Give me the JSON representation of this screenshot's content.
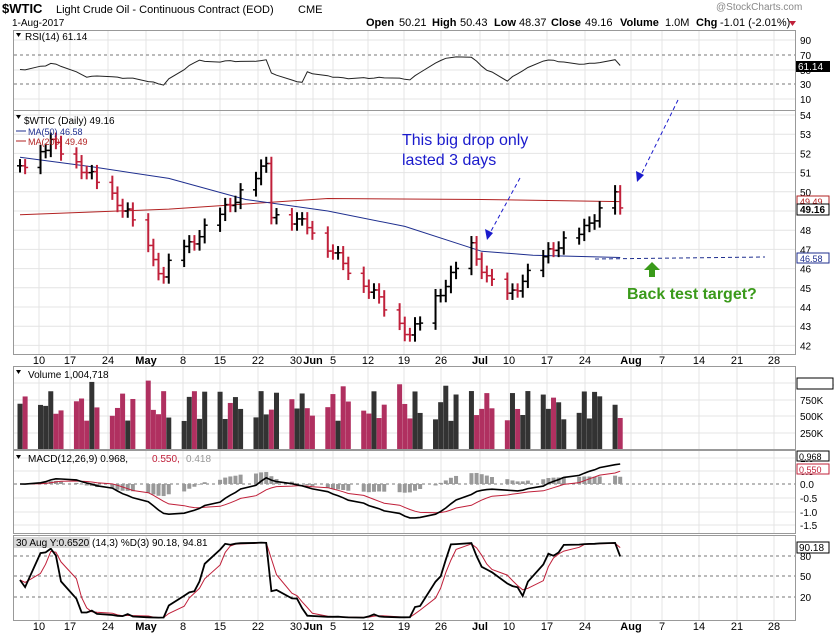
{
  "header": {
    "symbol": "$WTIC",
    "title": "Light Crude Oil - Continuous Contract (EOD)",
    "exchange": "CME",
    "date": "1-Aug-2017",
    "watermark": "@StockCharts.com",
    "open_label": "Open",
    "open": "50.21",
    "high_label": "High",
    "high": "50.43",
    "low_label": "Low",
    "low": "48.37",
    "close_label": "Close",
    "close": "49.16",
    "volume_label": "Volume",
    "volume": "1.0M",
    "chg_label": "Chg",
    "chg": "-1.01 (-2.01%)"
  },
  "panels": {
    "rsi": {
      "legend": "RSI(14) 61.14",
      "ticks": [
        "90",
        "70",
        "50",
        "30",
        "10"
      ],
      "value_tag": "61.14"
    },
    "price": {
      "legend_main": "$WTIC (Daily) 49.16",
      "legend_ma50": "MA(50) 46.58",
      "legend_ma200": "MA(200) 49.49",
      "ticks": [
        "54",
        "53",
        "52",
        "51",
        "50",
        "49",
        "48",
        "47",
        "46",
        "45",
        "44",
        "43",
        "42"
      ],
      "tag_ma200": "49.49",
      "tag_close": "49.16",
      "tag_ma50": "46.58"
    },
    "volume": {
      "legend": "Volume 1,004,718",
      "ticks": [
        "1004718",
        "750K",
        "500K",
        "250K"
      ]
    },
    "macd": {
      "legend_a": "MACD(12,26,9) 0.968,",
      "legend_b": "0.550,",
      "legend_c": "0.418",
      "ticks": [
        "1.0",
        "0.5",
        "0.0",
        "-0.5",
        "-1.0",
        "-1.5"
      ],
      "tag_macd": "0.968",
      "tag_signal": "0.550"
    },
    "stoch": {
      "legend": "30 Aug Y:0.6520 (14,3) %D(3) 90.18, 94.81",
      "ticks": [
        "80",
        "50",
        "20"
      ],
      "tag": "90.18"
    }
  },
  "date_axis": [
    "10",
    "17",
    "24",
    "May",
    "8",
    "15",
    "22",
    "30",
    "Jun",
    "5",
    "12",
    "19",
    "26",
    "Jul",
    "10",
    "17",
    "24",
    "Aug",
    "7",
    "14",
    "21",
    "28"
  ],
  "annotations": {
    "drop_line1": "This big drop only",
    "drop_line2": "lasted 3 days",
    "backtest": "Back test target?"
  },
  "colors": {
    "up": "#000000",
    "down": "#c0203a",
    "ma50": "#1f2f8f",
    "ma200": "#b22222",
    "vol_down": "#b03060",
    "annotation_blue": "#1a1acc",
    "annotation_green": "#3a9a1a"
  },
  "chart_data": {
    "type": "line",
    "title": "Light Crude Oil - Continuous Contract (EOD)",
    "x_range": [
      "2017-04-06",
      "2017-08-01"
    ],
    "ylim": [
      41.5,
      54.5
    ],
    "grid": true,
    "price_waypoints": [
      {
        "date": "Apr 6",
        "close": 51.3
      },
      {
        "date": "Apr 12",
        "close": 52.6
      },
      {
        "date": "Apr 20",
        "close": 50.8
      },
      {
        "date": "Apr 27",
        "close": 48.9
      },
      {
        "date": "May 4",
        "close": 45.5
      },
      {
        "date": "May 5",
        "close": 46.2
      },
      {
        "date": "May 15",
        "close": 48.8
      },
      {
        "date": "May 24",
        "close": 51.4
      },
      {
        "date": "May 25",
        "close": 48.9
      },
      {
        "date": "Jun 1",
        "close": 48.3
      },
      {
        "date": "Jun 9",
        "close": 46.0
      },
      {
        "date": "Jun 14",
        "close": 44.7
      },
      {
        "date": "Jun 21",
        "close": 42.5
      },
      {
        "date": "Jul 3",
        "close": 47.1
      },
      {
        "date": "Jul 6",
        "close": 45.5
      },
      {
        "date": "Jul 10",
        "close": 44.5
      },
      {
        "date": "Jul 19",
        "close": 47.1
      },
      {
        "date": "Jul 25",
        "close": 48.0
      },
      {
        "date": "Jul 31",
        "close": 50.2
      },
      {
        "date": "Aug 1",
        "close": 49.16
      }
    ],
    "series": [
      {
        "name": "MA(50)",
        "values": [
          {
            "date": "Apr 6",
            "v": 51.8
          },
          {
            "date": "Apr 20",
            "v": 51.3
          },
          {
            "date": "May 5",
            "v": 50.7
          },
          {
            "date": "May 20",
            "v": 49.6
          },
          {
            "date": "Jun 5",
            "v": 49.0
          },
          {
            "date": "Jun 20",
            "v": 48.2
          },
          {
            "date": "Jul 5",
            "v": 46.9
          },
          {
            "date": "Jul 15",
            "v": 46.7
          },
          {
            "date": "Aug 1",
            "v": 46.58
          }
        ]
      },
      {
        "name": "MA(200)",
        "values": [
          {
            "date": "Apr 6",
            "v": 48.8
          },
          {
            "date": "May 5",
            "v": 49.1
          },
          {
            "date": "Jun 5",
            "v": 49.65
          },
          {
            "date": "Jul 5",
            "v": 49.6
          },
          {
            "date": "Aug 1",
            "v": 49.49
          }
        ]
      }
    ],
    "rsi_last": 61.14,
    "volume_last": 1004718,
    "macd": {
      "macd": 0.968,
      "signal": 0.55,
      "histogram": 0.418
    },
    "stochastic": {
      "k": 90.18,
      "d": 94.81
    }
  }
}
